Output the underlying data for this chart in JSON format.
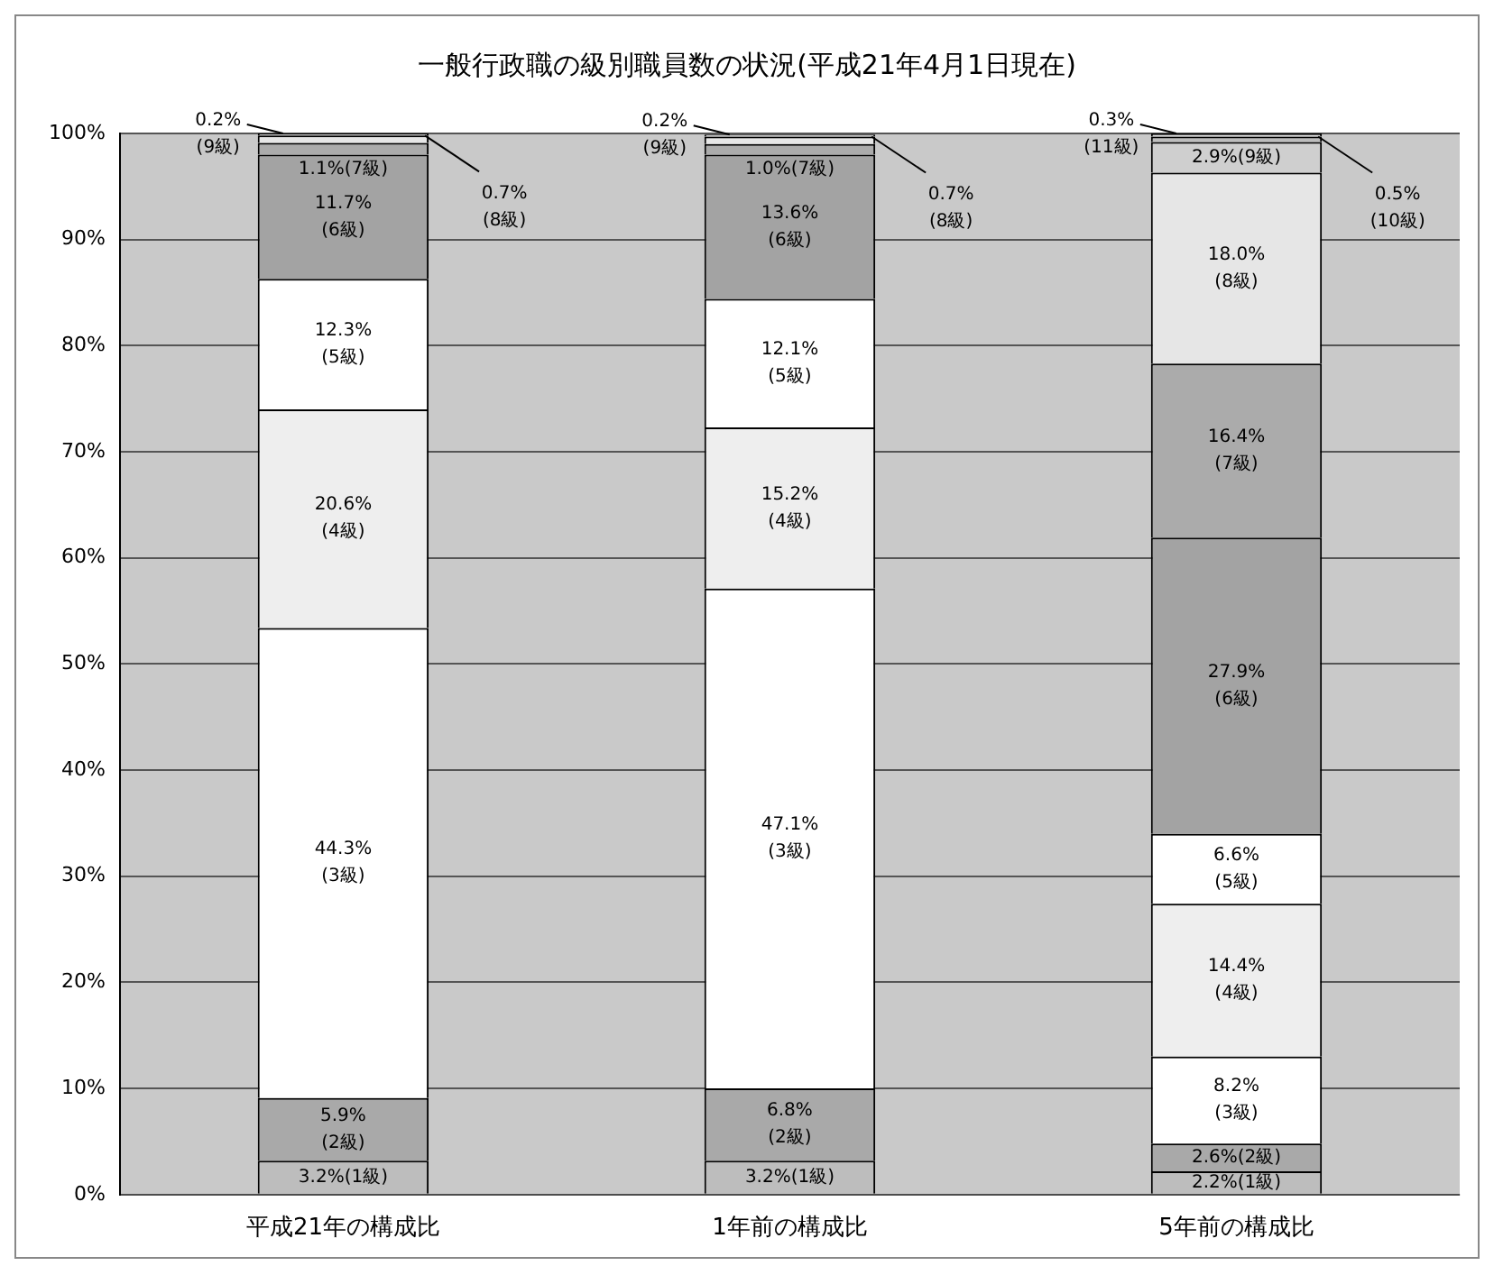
{
  "chart_data": {
    "type": "bar",
    "stacked": true,
    "title": "一般行政職の級別職員数の状況(平成21年4月1日現在)",
    "categories": [
      "平成21年の構成比",
      "1年前の構成比",
      "5年前の構成比"
    ],
    "series": [
      {
        "color": "#bdbdbd",
        "values": [
          3.2,
          3.2,
          2.2
        ],
        "value_labels": [
          "3.2%(1級)",
          "3.2%(1級)",
          "2.2%(1級)"
        ]
      },
      {
        "color": "#a9a9a9",
        "values": [
          5.9,
          6.8,
          2.6
        ],
        "value_labels": [
          "5.9%\n(2級)",
          "6.8%\n(2級)",
          "2.6%(2級)"
        ]
      },
      {
        "color": "#ffffff",
        "values": [
          44.3,
          47.1,
          8.2
        ],
        "value_labels": [
          "44.3%\n(3級)",
          "47.1%\n(3級)",
          "8.2%\n(3級)"
        ]
      },
      {
        "color": "#eeeeee",
        "values": [
          20.6,
          15.2,
          14.4
        ],
        "value_labels": [
          "20.6%\n(4級)",
          "15.2%\n(4級)",
          "14.4%\n(4級)"
        ]
      },
      {
        "color": "#ffffff",
        "values": [
          12.3,
          12.1,
          6.6
        ],
        "value_labels": [
          "12.3%\n(5級)",
          "12.1%\n(5級)",
          "6.6%\n(5級)"
        ]
      },
      {
        "color": "#a3a3a3",
        "values": [
          11.7,
          13.6,
          27.9
        ],
        "value_labels": [
          "11.7%\n(6級)",
          "13.6%\n(6級)",
          "27.9%\n(6級)"
        ]
      },
      {
        "color": "#ababab",
        "values": [
          1.1,
          1.0,
          16.4
        ],
        "value_labels": [
          "1.1%(7級)",
          "1.0%(7級)",
          "16.4%\n(7級)"
        ]
      },
      {
        "color": "#e6e6e6",
        "values": [
          0.7,
          0.7,
          18.0
        ],
        "value_labels": [
          "0.7%\n(8級)",
          "0.7%\n(8級)",
          "18.0%\n(8級)"
        ]
      },
      {
        "color": "#cfcfcf",
        "values": [
          0.2,
          0.2,
          2.9
        ],
        "value_labels": [
          "0.2%\n(9級)",
          "0.2%\n(9級)",
          "2.9%(9級)"
        ]
      },
      {
        "color": "#bdbdbd",
        "values": [
          null,
          null,
          0.5
        ],
        "value_labels": [
          null,
          null,
          "0.5%\n(10級)"
        ]
      },
      {
        "color": "#dcdcdc",
        "values": [
          null,
          null,
          0.3
        ],
        "value_labels": [
          null,
          null,
          "0.3%\n(11級)"
        ]
      }
    ],
    "ylim": [
      0,
      100
    ],
    "yticks": [
      {
        "value": 0,
        "label": "0%"
      },
      {
        "value": 10,
        "label": "10%"
      },
      {
        "value": 20,
        "label": "20%"
      },
      {
        "value": 30,
        "label": "30%"
      },
      {
        "value": 40,
        "label": "40%"
      },
      {
        "value": 50,
        "label": "50%"
      },
      {
        "value": 60,
        "label": "60%"
      },
      {
        "value": 70,
        "label": "70%"
      },
      {
        "value": 80,
        "label": "80%"
      },
      {
        "value": 90,
        "label": "90%"
      },
      {
        "value": 100,
        "label": "100%"
      }
    ],
    "grid": "y",
    "legend": false
  }
}
